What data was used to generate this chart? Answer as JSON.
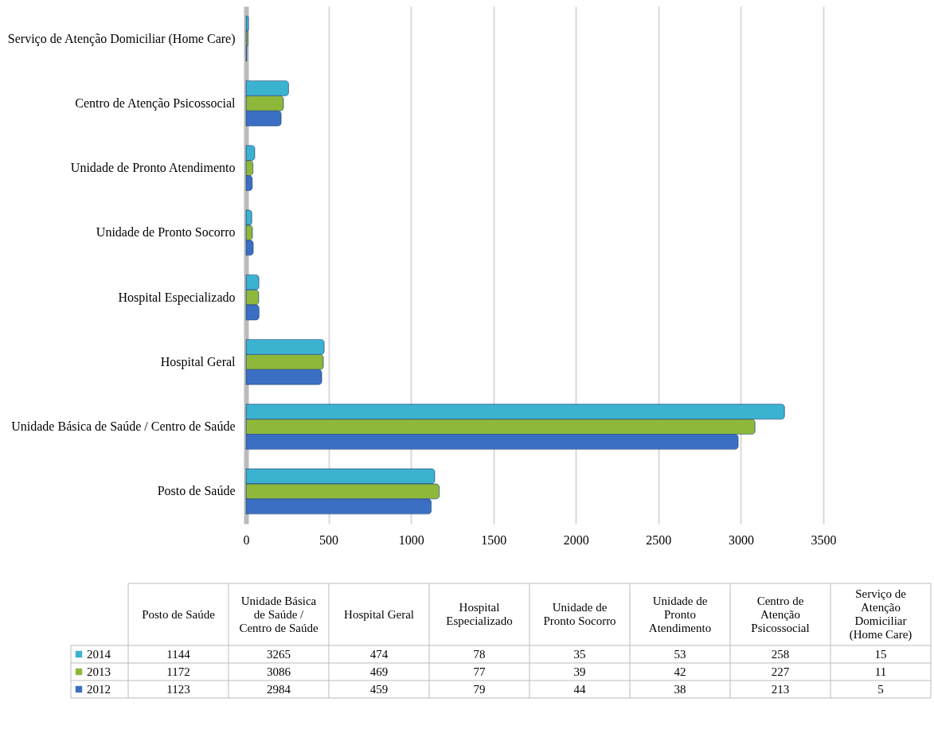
{
  "chart_data": [
    {
      "type": "bar",
      "orientation": "horizontal",
      "categories": [
        "Serviço de Atenção Domiciliar (Home Care)",
        "Centro de Atenção Psicossocial",
        "Unidade de Pronto Atendimento",
        "Unidade de Pronto Socorro",
        "Hospital Especializado",
        "Hospital Geral",
        "Unidade Básica de Saúde / Centro de Saúde",
        "Posto de Saúde"
      ],
      "series": [
        {
          "color": "#3bb3d0",
          "values": [
            15,
            258,
            53,
            35,
            78,
            474,
            3265,
            1144
          ]
        },
        {
          "color": "#8db83a",
          "values": [
            11,
            227,
            42,
            39,
            77,
            469,
            3086,
            1172
          ]
        },
        {
          "color": "#3a6fc4",
          "values": [
            5,
            213,
            38,
            44,
            79,
            459,
            2984,
            1123
          ]
        }
      ],
      "xlim": [
        0,
        3500
      ],
      "xticks": [
        0,
        500,
        1000,
        1500,
        2000,
        2500,
        3000,
        3500
      ],
      "grid": "x"
    },
    {
      "type": "other",
      "categories": [
        "Posto de Saúde",
        "Unidade Básica de Saúde / Centro de Saúde",
        "Hospital Geral",
        "Hospital Especializado",
        "Unidade de Pronto Socorro",
        "Unidade de Pronto Atendimento",
        "Centro de Atenção Psicossocial",
        "Serviço de Atenção Domiciliar (Home Care)"
      ],
      "series": [
        {
          "name": "2014",
          "color": "#3bb3d0",
          "values": [
            1144,
            3265,
            474,
            78,
            35,
            53,
            258,
            15
          ]
        },
        {
          "name": "2013",
          "color": "#8db83a",
          "values": [
            1172,
            3086,
            469,
            77,
            39,
            42,
            227,
            11
          ]
        },
        {
          "name": "2012",
          "color": "#3a6fc4",
          "values": [
            1123,
            2984,
            459,
            79,
            44,
            38,
            213,
            5
          ]
        }
      ],
      "legend": "left",
      "data_labels": true
    }
  ]
}
